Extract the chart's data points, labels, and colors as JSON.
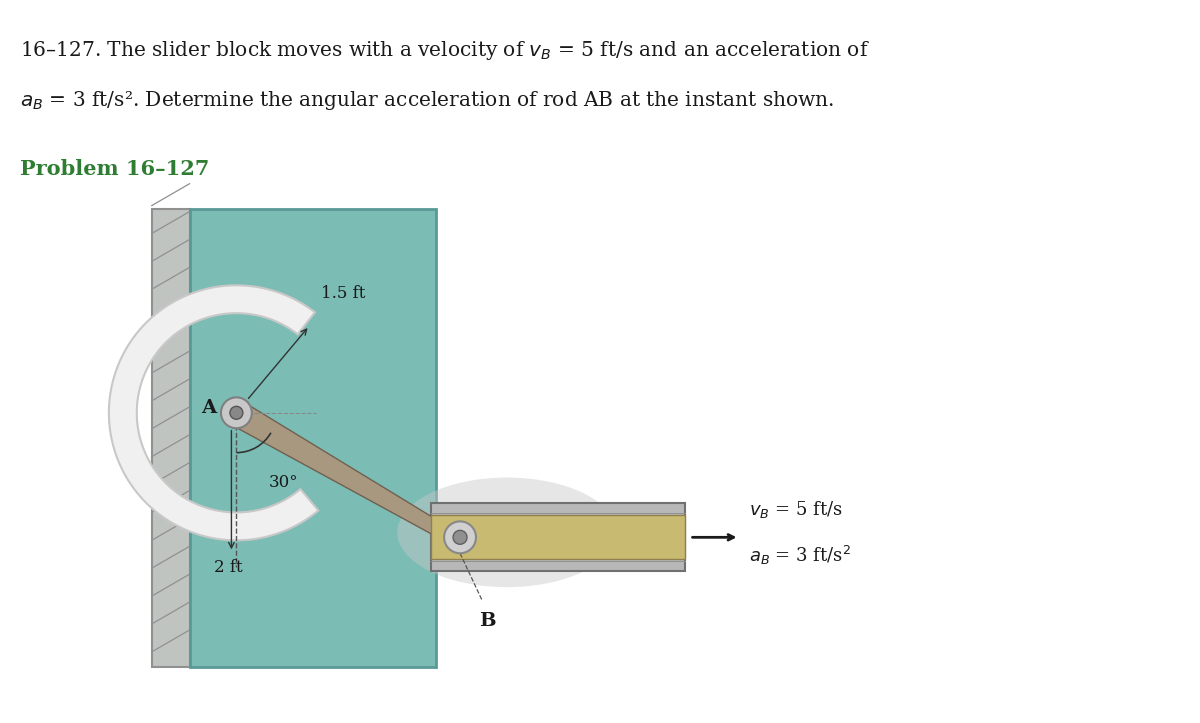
{
  "title_line1": "16–127. The slider block moves with a velocity of $v_B$ = 5 ft/s and an acceleration of",
  "title_line2": "$a_B$ = 3 ft/s². Determine the angular acceleration of rod AB at the instant shown.",
  "problem_label": "Problem 16–127",
  "problem_color": "#2e7d32",
  "bg_color": "#ffffff",
  "panel_color": "#7bbcb4",
  "panel_edge_color": "#5a9a96",
  "wall_color": "#c0c4c0",
  "wall_edge_color": "#909090",
  "arc_color": "#f0f0f0",
  "arc_edge_color": "#c8c8c8",
  "rod_color": "#a89880",
  "rod_edge_color": "#706050",
  "slider_outer_color": "#b8b8b8",
  "slider_inner_color": "#c8ba70",
  "slider_edge_color": "#707070",
  "pin_color": "#c8c8c8",
  "pin_edge_color": "#808080",
  "shadow_color": "#c8c8c8",
  "arrow_color": "#1a1a1a",
  "label_color": "#1a1a1a",
  "angle_label": "30°",
  "dist_label_1": "1.5 ft",
  "dist_label_2": "2 ft",
  "node_A_label": "A",
  "node_B_label": "B",
  "vB_label": "$v_B$ = 5 ft/s",
  "aB_label": "$a_B$ = 3 ft/s$^2$"
}
